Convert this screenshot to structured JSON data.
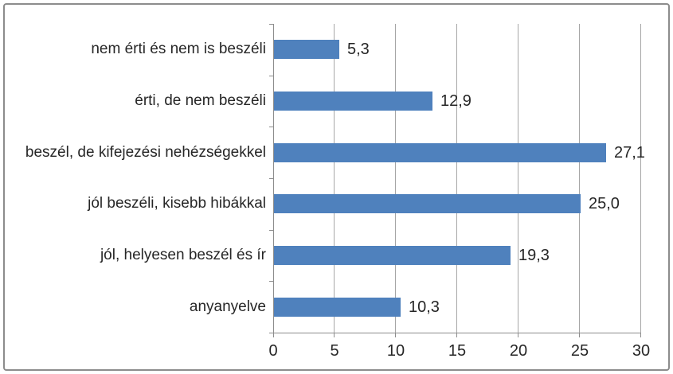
{
  "chart_data": {
    "type": "bar",
    "orientation": "horizontal",
    "title": "",
    "xlabel": "",
    "ylabel": "",
    "categories": [
      "nem érti és nem is beszéli",
      "érti, de nem beszéli",
      "beszél, de kifejezési nehézségekkel",
      "jól beszéli, kisebb hibákkal",
      "jól, helyesen beszél és ír",
      "anyanyelve"
    ],
    "values": [
      5.3,
      12.9,
      27.1,
      25.0,
      19.3,
      10.3
    ],
    "value_labels": [
      "5,3",
      "12,9",
      "27,1",
      "25,0",
      "19,3",
      "10,3"
    ],
    "xlim": [
      0,
      30
    ],
    "x_ticks": [
      0,
      5,
      10,
      15,
      20,
      25,
      30
    ],
    "x_tick_labels": [
      "0",
      "5",
      "10",
      "15",
      "20",
      "25",
      "30"
    ],
    "grid": "vertical",
    "legend": "none",
    "colors": {
      "bar": "#4f81bd",
      "gridline": "#a6a6a6",
      "axis": "#8c8c8c",
      "text": "#262626",
      "frame": "#8c8c8c"
    }
  }
}
